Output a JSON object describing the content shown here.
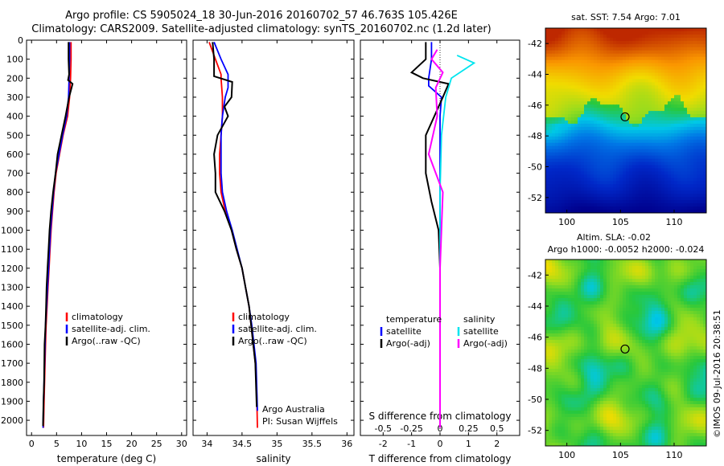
{
  "titles": {
    "line1": "Argo profile: CS 5905024_18 30-Jun-2016 20160702_57 46.763S 105.426E",
    "line2": "Climatology: CARS2009. Satellite-adjusted climatology: synTS_20160702.nc (1.2d later)"
  },
  "colors": {
    "climatology": "#ff0000",
    "satellite": "#0000ff",
    "argo": "#000000",
    "salinity_satellite": "#00e5ee",
    "salinity_argo": "#ff00ff"
  },
  "chart_data": [
    {
      "type": "line",
      "id": "temperature",
      "xlabel": "temperature (deg C)",
      "xlim": [
        -1,
        31
      ],
      "ylim": [
        0,
        2080
      ],
      "y_inverted": true,
      "xticks": [
        0,
        5,
        10,
        15,
        20,
        25,
        30
      ],
      "yticks": [
        0,
        100,
        200,
        300,
        400,
        500,
        600,
        700,
        800,
        900,
        1000,
        1100,
        1200,
        1300,
        1400,
        1500,
        1600,
        1700,
        1800,
        1900,
        2000
      ],
      "legend": {
        "entries": [
          "climatology",
          "satellite-adj. clim.",
          "Argo(..raw -QC)"
        ],
        "placement": "center"
      },
      "series": [
        {
          "name": "climatology",
          "x": [
            7.9,
            7.9,
            7.8,
            7.6,
            7.2,
            6.3,
            5.6,
            4.9,
            4.5,
            4.2,
            3.9,
            3.7,
            3.5,
            3.3,
            3.1,
            2.9,
            2.8,
            2.7,
            2.6,
            2.5,
            2.4
          ],
          "depth": [
            10,
            100,
            200,
            300,
            400,
            500,
            600,
            700,
            800,
            900,
            1000,
            1100,
            1200,
            1300,
            1400,
            1500,
            1600,
            1700,
            1800,
            1900,
            2040
          ]
        },
        {
          "name": "satellite-adj. clim.",
          "x": [
            7.6,
            7.6,
            7.5,
            7.4,
            7.0,
            6.2,
            5.5,
            4.8,
            4.4,
            4.1,
            3.8,
            3.6,
            3.4,
            3.2,
            3.0,
            2.8,
            2.7,
            2.6,
            2.5,
            2.4,
            2.3
          ],
          "depth": [
            10,
            100,
            200,
            300,
            400,
            500,
            600,
            700,
            800,
            900,
            1000,
            1100,
            1200,
            1300,
            1400,
            1500,
            1600,
            1700,
            1800,
            1900,
            2040
          ]
        },
        {
          "name": "Argo(..raw -QC)",
          "x": [
            7.4,
            7.4,
            7.5,
            7.3,
            8.2,
            7.5,
            6.8,
            6.0,
            5.2,
            4.8,
            4.3,
            3.9,
            3.6,
            3.4,
            3.2,
            3.0,
            2.9,
            2.8,
            2.6,
            2.5,
            2.4,
            2.3
          ],
          "depth": [
            10,
            100,
            180,
            210,
            230,
            300,
            400,
            500,
            600,
            700,
            800,
            900,
            1000,
            1100,
            1200,
            1300,
            1400,
            1500,
            1600,
            1800,
            1900,
            2030
          ]
        }
      ]
    },
    {
      "type": "line",
      "id": "salinity",
      "xlabel": "salinity",
      "xlim": [
        33.8,
        36.1
      ],
      "ylim": [
        0,
        2080
      ],
      "y_inverted": true,
      "xticks": [
        34,
        34.5,
        35,
        35.5,
        36
      ],
      "xticklabels": [
        "34",
        "34.5",
        "35",
        "35.5",
        "36"
      ],
      "legend": {
        "entries": [
          "climatology",
          "satellite-adj. clim.",
          "Argo(..raw -QC)"
        ],
        "placement": "center"
      },
      "annotation": [
        "Argo Australia",
        "PI: Susan Wijffels"
      ],
      "series": [
        {
          "name": "climatology",
          "x": [
            34.03,
            34.12,
            34.2,
            34.2,
            34.22,
            34.22,
            34.2,
            34.18,
            34.18,
            34.2,
            34.26,
            34.35,
            34.42,
            34.5,
            34.55,
            34.6,
            34.63,
            34.66,
            34.69,
            34.71,
            34.72
          ],
          "depth": [
            10,
            100,
            180,
            200,
            300,
            400,
            500,
            600,
            700,
            800,
            900,
            1000,
            1100,
            1200,
            1300,
            1400,
            1500,
            1600,
            1700,
            1850,
            2040
          ]
        },
        {
          "name": "satellite-adj. clim.",
          "x": [
            34.1,
            34.2,
            34.3,
            34.3,
            34.26,
            34.22,
            34.2,
            34.2,
            34.2,
            34.22,
            34.28,
            34.36,
            34.43,
            34.5,
            34.55,
            34.6,
            34.64,
            34.67,
            34.7,
            34.72
          ],
          "depth": [
            10,
            100,
            180,
            250,
            300,
            400,
            500,
            600,
            700,
            800,
            900,
            1000,
            1100,
            1200,
            1300,
            1400,
            1500,
            1600,
            1700,
            1950
          ]
        },
        {
          "name": "Argo(..raw -QC)",
          "x": [
            34.08,
            34.1,
            34.1,
            34.36,
            34.35,
            34.25,
            34.3,
            34.15,
            34.1,
            34.12,
            34.12,
            34.25,
            34.35,
            34.42,
            34.5,
            34.55,
            34.6,
            34.63,
            34.66,
            34.69,
            34.71
          ],
          "depth": [
            10,
            100,
            190,
            220,
            300,
            350,
            400,
            500,
            600,
            700,
            800,
            900,
            1000,
            1100,
            1200,
            1300,
            1400,
            1500,
            1600,
            1700,
            1930
          ]
        }
      ]
    },
    {
      "type": "line",
      "id": "differences",
      "xlabel": "T difference from climatology",
      "xlim": [
        -2.8,
        2.8
      ],
      "ylim": [
        0,
        2080
      ],
      "y_inverted": true,
      "xticks": [
        -2,
        -1,
        0,
        1,
        2
      ],
      "secondary_x": {
        "label": "S difference from climatology",
        "ticks": [
          -0.5,
          -0.25,
          0,
          0.25,
          0.5
        ],
        "ticklabels": [
          "-0.5",
          "-0.25",
          "0",
          "0.25",
          "0.5"
        ],
        "scale_per_T_unit": 0.25
      },
      "legend": {
        "groups": [
          {
            "heading": "temperature",
            "entries": [
              "satellite",
              "Argo(-adj)"
            ]
          },
          {
            "heading": "salinity",
            "entries": [
              "satellite",
              "Argo(-adj)"
            ]
          }
        ],
        "placement": "center"
      },
      "series": [
        {
          "name": "satellite",
          "group": "temperature",
          "x": [
            -0.3,
            -0.3,
            -0.4,
            -0.4,
            0.05,
            0.0,
            0.0,
            0.0,
            0.0,
            0.0,
            0.0,
            0.0,
            0.0
          ],
          "depth": [
            10,
            100,
            200,
            240,
            300,
            400,
            600,
            800,
            1000,
            1200,
            1500,
            1800,
            2040
          ]
        },
        {
          "name": "Argo(-adj)",
          "group": "temperature",
          "x": [
            -0.5,
            -0.5,
            -1.0,
            -0.6,
            0.3,
            0.1,
            -0.5,
            -0.5,
            -0.3,
            -0.05,
            0.0,
            0.0,
            0.0,
            0.0,
            0.0
          ],
          "depth": [
            10,
            100,
            170,
            200,
            230,
            300,
            500,
            700,
            850,
            1000,
            1200,
            1400,
            1600,
            1800,
            2040
          ]
        },
        {
          "name": "satellite",
          "group": "salinity",
          "x": [
            0.6,
            1.2,
            0.4,
            0.2,
            0.05,
            0.0,
            0.0,
            0.0,
            0.0
          ],
          "depth": [
            80,
            120,
            200,
            300,
            500,
            800,
            1000,
            1500,
            2040
          ]
        },
        {
          "name": "Argo(-adj)",
          "group": "salinity",
          "x": [
            -0.1,
            -0.3,
            0.1,
            -0.15,
            -0.1,
            -0.4,
            0.1,
            0.0,
            0.0
          ],
          "depth": [
            50,
            100,
            170,
            250,
            400,
            600,
            800,
            1200,
            2040
          ]
        }
      ]
    },
    {
      "type": "heatmap",
      "id": "sst-map",
      "title": "sat. SST: 7.54  Argo: 7.01",
      "xlim": [
        98,
        113
      ],
      "ylim": [
        -53,
        -41
      ],
      "xticks": [
        100,
        105,
        110
      ],
      "yticks": [
        -42,
        -44,
        -46,
        -48,
        -50,
        -52
      ],
      "marker": {
        "lon": 105.426,
        "lat": -46.763
      }
    },
    {
      "type": "heatmap",
      "id": "sla-map",
      "title_lines": [
        "Altim. SLA: -0.02",
        "Argo h1000: -0.0052  h2000: -0.024"
      ],
      "xlim": [
        98,
        113
      ],
      "ylim": [
        -53,
        -41
      ],
      "xticks": [
        100,
        105,
        110
      ],
      "yticks": [
        -42,
        -44,
        -46,
        -48,
        -50,
        -52
      ],
      "marker": {
        "lon": 105.426,
        "lat": -46.763
      },
      "watermark": "©IMOS 09-Jul-2016 20:38:51"
    }
  ]
}
